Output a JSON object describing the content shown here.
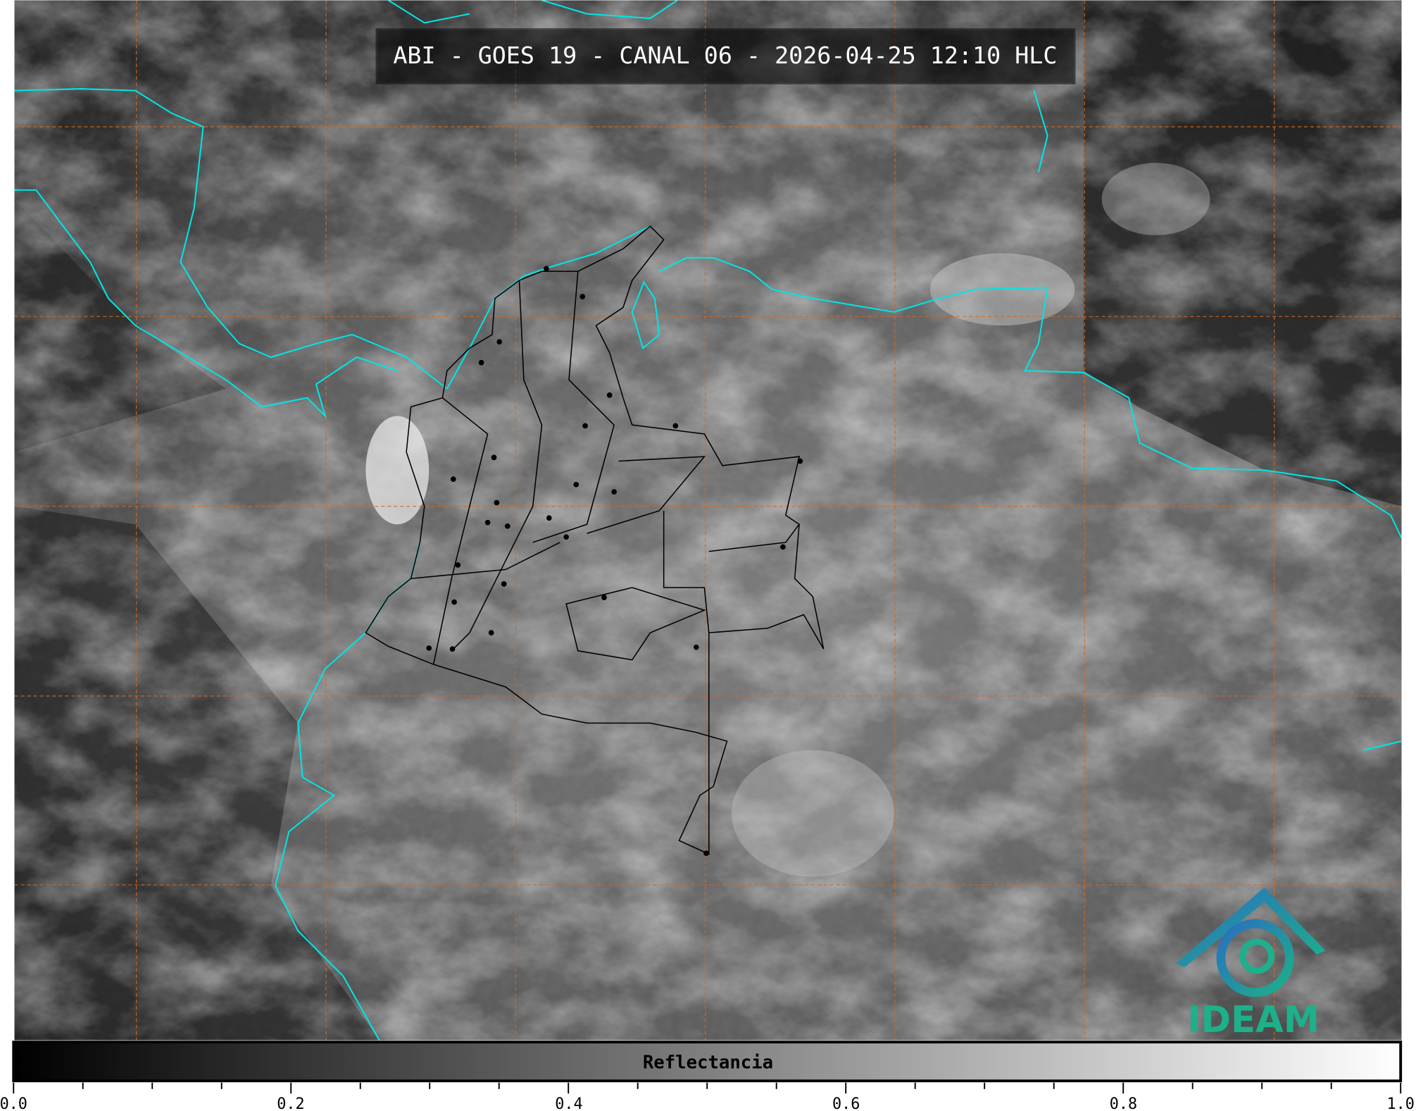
{
  "title": "ABI - GOES 19 - CANAL 06 - 2026-04-25 12:10 HLC",
  "colorbar": {
    "label": "Reflectancia",
    "ticks": [
      "0.0",
      "0.2",
      "0.4",
      "0.6",
      "0.8",
      "1.0"
    ],
    "range": [
      0.0,
      1.0
    ],
    "colormap": "greys"
  },
  "logo": {
    "text": "IDEAM"
  },
  "colors": {
    "coastline": "#00e5e5",
    "gridlines": "#d2691e",
    "borders": "#000000",
    "logo_blue": "#2a7fc0",
    "logo_green": "#1db08a"
  }
}
